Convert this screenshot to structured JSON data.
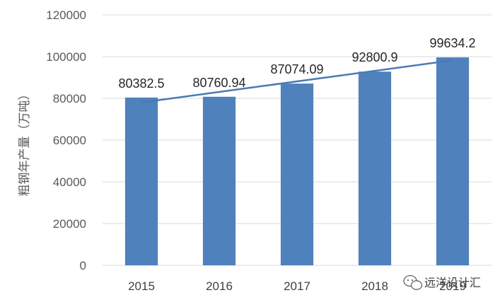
{
  "chart_data": {
    "type": "bar",
    "categories": [
      "2015",
      "2016",
      "2017",
      "2018",
      "2019"
    ],
    "values": [
      80382.5,
      80760.94,
      87074.09,
      92800.9,
      99634.2
    ],
    "data_labels": [
      "80382.5",
      "80760.94",
      "87074.09",
      "92800.9",
      "99634.2"
    ],
    "ylabel": "粗钢年产量（万吨）",
    "ylim": [
      0,
      120000
    ],
    "yticks": [
      0,
      20000,
      40000,
      60000,
      80000,
      100000,
      120000
    ],
    "trendline": {
      "type": "linear"
    },
    "grid": true,
    "legend": "none",
    "colors": {
      "bar": "#4f81bd",
      "trend": "#4a7ab5",
      "grid": "#d9d9d9"
    }
  },
  "watermark": {
    "text": "远洋设计汇",
    "icon": "wechat-icon"
  }
}
